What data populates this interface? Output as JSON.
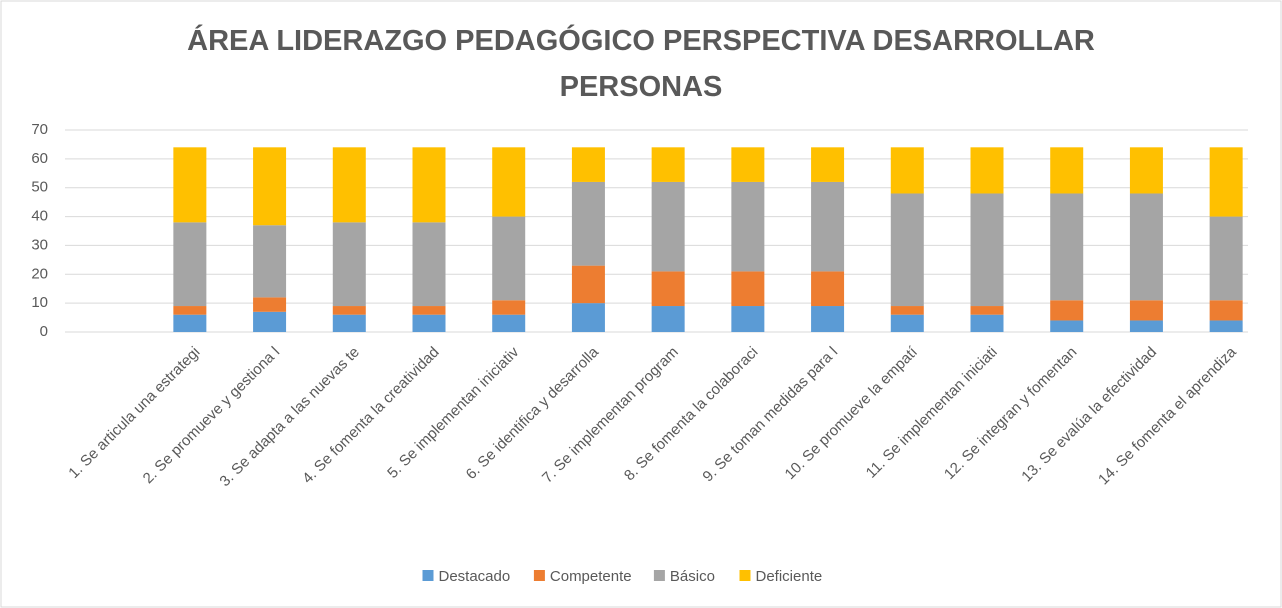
{
  "chart_data": {
    "type": "stacked_bar",
    "title": "ÁREA LIDERAZGO PEDAGÓGICO PERSPECTIVA DESARROLLAR PERSONAS",
    "categories": [
      "1. Se articula una estrategi",
      "2. Se promueve y gestiona l",
      "3. Se adapta a las nuevas te",
      "4. Se fomenta la creatividad",
      "5. Se implementan iniciativ",
      "6. Se identifica y desarrolla",
      "7. Se implementan program",
      "8. Se fomenta la colaboraci",
      "9. Se toman medidas para l",
      "10. Se promueve la empatí",
      "11. Se implementan iniciati",
      "12. Se integran y fomentan",
      "13. Se evalúa la efectividad",
      "14. Se fomenta el aprendiza"
    ],
    "series": [
      {
        "name": "Destacado",
        "color": "#5b9bd5",
        "values": [
          6,
          7,
          6,
          6,
          6,
          10,
          9,
          9,
          9,
          6,
          6,
          4,
          4,
          4
        ]
      },
      {
        "name": "Competente",
        "color": "#ed7d31",
        "values": [
          3,
          5,
          3,
          3,
          5,
          13,
          12,
          12,
          12,
          3,
          3,
          7,
          7,
          7
        ]
      },
      {
        "name": "Básico",
        "color": "#a5a5a5",
        "values": [
          29,
          25,
          29,
          29,
          29,
          29,
          31,
          31,
          31,
          39,
          39,
          37,
          37,
          29
        ]
      },
      {
        "name": "Deficiente",
        "color": "#ffc000",
        "values": [
          26,
          27,
          26,
          26,
          24,
          12,
          12,
          12,
          12,
          16,
          16,
          16,
          16,
          24
        ]
      }
    ],
    "ylim": [
      0,
      70
    ],
    "yticks": [
      0,
      10,
      20,
      30,
      40,
      50,
      60,
      70
    ],
    "grid": true,
    "legend": "bottom"
  }
}
